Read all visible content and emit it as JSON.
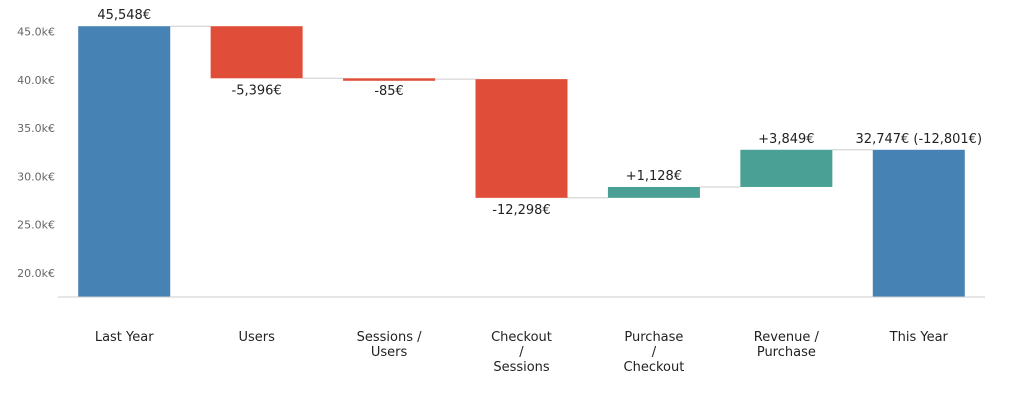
{
  "chart_data": {
    "type": "waterfall",
    "title": "",
    "xlabel": "",
    "ylabel": "",
    "ylim": [
      17500,
      46500
    ],
    "y_ticks": [
      20000,
      25000,
      30000,
      35000,
      40000,
      45000
    ],
    "y_tick_labels": [
      "20.0k€",
      "25.0k€",
      "30.0k€",
      "35.0k€",
      "40.0k€",
      "45.0k€"
    ],
    "categories": [
      [
        "Last Year"
      ],
      [
        "Users"
      ],
      [
        "Sessions /",
        "Users"
      ],
      [
        "Checkout",
        "/",
        "Sessions"
      ],
      [
        "Purchase",
        "/",
        "Checkout"
      ],
      [
        "Revenue /",
        "Purchase"
      ],
      [
        "This Year"
      ]
    ],
    "steps": [
      {
        "kind": "total",
        "start": 0,
        "end": 45548,
        "label": "45,548€"
      },
      {
        "kind": "delta",
        "start": 45548,
        "end": 40152,
        "label": "-5,396€"
      },
      {
        "kind": "delta",
        "start": 40152,
        "end": 40067,
        "label": "-85€"
      },
      {
        "kind": "delta",
        "start": 40067,
        "end": 27769,
        "label": "-12,298€"
      },
      {
        "kind": "delta",
        "start": 27769,
        "end": 28897,
        "label": "+1,128€"
      },
      {
        "kind": "delta",
        "start": 28897,
        "end": 32747,
        "label": "+3,849€"
      },
      {
        "kind": "total",
        "start": 0,
        "end": 32747,
        "label": "32,747€ (-12,801€)"
      }
    ],
    "colors": {
      "total": "#4682b4",
      "decrease": "#e04e39",
      "increase": "#4aa094",
      "connector": "#cccccc",
      "axis": "#cccccc",
      "tick_text": "#666666",
      "label_text": "#222222"
    },
    "grid": false,
    "legend": "none"
  }
}
